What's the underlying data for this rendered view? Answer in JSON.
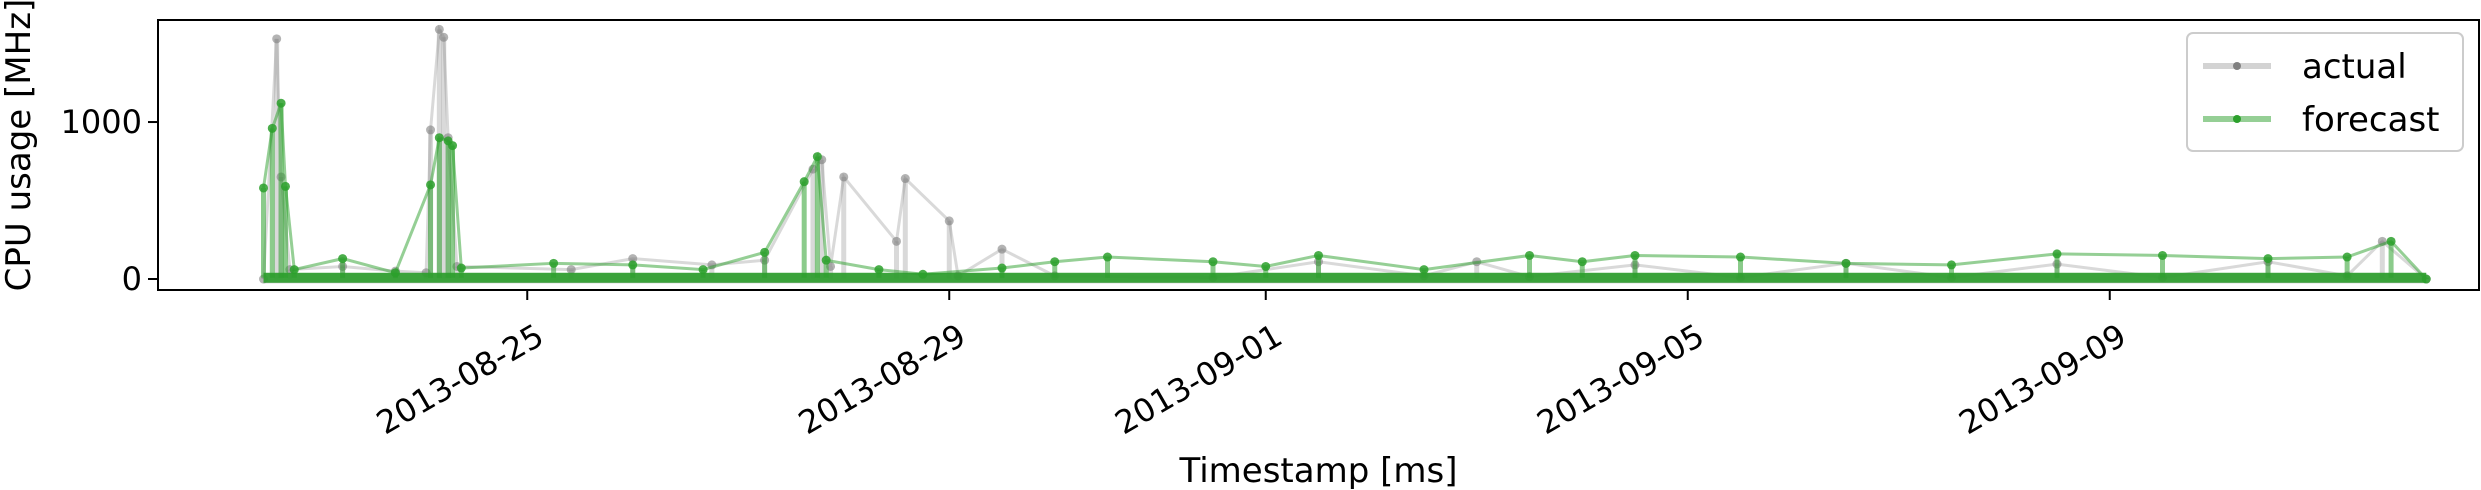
{
  "chart_data": {
    "type": "line",
    "xlabel": "Timestamp [ms]",
    "ylabel": "CPU usage [MHz]",
    "x_ticks": [
      "2013-08-25",
      "2013-08-29",
      "2013-09-01",
      "2013-09-05",
      "2013-09-09"
    ],
    "x_tick_dates": [
      "2013-08-25",
      "2013-08-29",
      "2013-09-01",
      "2013-09-05",
      "2013-09-09"
    ],
    "x_range": [
      "2013-08-21T12:00",
      "2013-09-12T12:00"
    ],
    "y_ticks": [
      0,
      1000
    ],
    "ylim": [
      -70,
      1650
    ],
    "grid": false,
    "legend": {
      "placement": "top-right",
      "entries": [
        "actual",
        "forecast"
      ]
    },
    "series": [
      {
        "name": "actual",
        "color": "#808080",
        "points": [
          [
            "2013-08-22T12:00",
            0
          ],
          [
            "2013-08-22T15:00",
            1530
          ],
          [
            "2013-08-22T16:00",
            650
          ],
          [
            "2013-08-22T18:00",
            60
          ],
          [
            "2013-08-23T06:00",
            80
          ],
          [
            "2013-08-23T18:00",
            50
          ],
          [
            "2013-08-24T01:00",
            40
          ],
          [
            "2013-08-24T02:00",
            950
          ],
          [
            "2013-08-24T04:00",
            1590
          ],
          [
            "2013-08-24T05:00",
            1540
          ],
          [
            "2013-08-24T06:00",
            900
          ],
          [
            "2013-08-24T08:00",
            80
          ],
          [
            "2013-08-25T10:00",
            60
          ],
          [
            "2013-08-26T00:00",
            130
          ],
          [
            "2013-08-26T18:00",
            90
          ],
          [
            "2013-08-27T06:00",
            120
          ],
          [
            "2013-08-27T17:00",
            700
          ],
          [
            "2013-08-27T19:00",
            760
          ],
          [
            "2013-08-27T21:00",
            80
          ],
          [
            "2013-08-28T00:00",
            650
          ],
          [
            "2013-08-28T12:00",
            240
          ],
          [
            "2013-08-28T14:00",
            640
          ],
          [
            "2013-08-29T00:00",
            370
          ],
          [
            "2013-08-29T02:00",
            20
          ],
          [
            "2013-08-29T12:00",
            190
          ],
          [
            "2013-08-30T00:00",
            20
          ],
          [
            "2013-08-31T12:00",
            10
          ],
          [
            "2013-09-01T12:00",
            110
          ],
          [
            "2013-09-02T12:00",
            20
          ],
          [
            "2013-09-03T00:00",
            110
          ],
          [
            "2013-09-03T12:00",
            15
          ],
          [
            "2013-09-04T12:00",
            90
          ],
          [
            "2013-09-05T12:00",
            10
          ],
          [
            "2013-09-06T12:00",
            100
          ],
          [
            "2013-09-07T12:00",
            10
          ],
          [
            "2013-09-08T12:00",
            95
          ],
          [
            "2013-09-09T12:00",
            10
          ],
          [
            "2013-09-10T12:00",
            110
          ],
          [
            "2013-09-11T06:00",
            20
          ],
          [
            "2013-09-11T14:00",
            240
          ],
          [
            "2013-09-12T00:00",
            0
          ]
        ]
      },
      {
        "name": "forecast",
        "color": "#2ca02c",
        "points": [
          [
            "2013-08-22T12:00",
            580
          ],
          [
            "2013-08-22T14:00",
            960
          ],
          [
            "2013-08-22T16:00",
            1120
          ],
          [
            "2013-08-22T17:00",
            590
          ],
          [
            "2013-08-22T19:00",
            60
          ],
          [
            "2013-08-23T06:00",
            130
          ],
          [
            "2013-08-23T18:00",
            40
          ],
          [
            "2013-08-24T02:00",
            600
          ],
          [
            "2013-08-24T04:00",
            900
          ],
          [
            "2013-08-24T06:00",
            880
          ],
          [
            "2013-08-24T07:00",
            850
          ],
          [
            "2013-08-24T09:00",
            70
          ],
          [
            "2013-08-25T06:00",
            100
          ],
          [
            "2013-08-26T00:00",
            90
          ],
          [
            "2013-08-26T16:00",
            60
          ],
          [
            "2013-08-27T06:00",
            170
          ],
          [
            "2013-08-27T15:00",
            620
          ],
          [
            "2013-08-27T18:00",
            780
          ],
          [
            "2013-08-27T20:00",
            120
          ],
          [
            "2013-08-28T08:00",
            60
          ],
          [
            "2013-08-28T18:00",
            30
          ],
          [
            "2013-08-29T12:00",
            70
          ],
          [
            "2013-08-30T00:00",
            110
          ],
          [
            "2013-08-30T12:00",
            140
          ],
          [
            "2013-08-31T12:00",
            110
          ],
          [
            "2013-09-01T00:00",
            80
          ],
          [
            "2013-09-01T12:00",
            150
          ],
          [
            "2013-09-02T12:00",
            60
          ],
          [
            "2013-09-03T12:00",
            150
          ],
          [
            "2013-09-04T00:00",
            110
          ],
          [
            "2013-09-04T12:00",
            150
          ],
          [
            "2013-09-05T12:00",
            140
          ],
          [
            "2013-09-06T12:00",
            100
          ],
          [
            "2013-09-07T12:00",
            90
          ],
          [
            "2013-09-08T12:00",
            160
          ],
          [
            "2013-09-09T12:00",
            150
          ],
          [
            "2013-09-10T12:00",
            130
          ],
          [
            "2013-09-11T06:00",
            140
          ],
          [
            "2013-09-11T16:00",
            240
          ],
          [
            "2013-09-12T00:00",
            0
          ]
        ]
      }
    ]
  }
}
